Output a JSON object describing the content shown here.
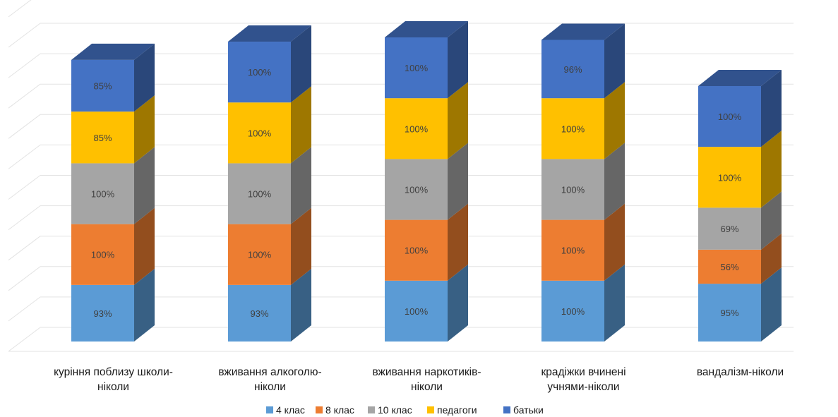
{
  "chart_data": {
    "type": "bar",
    "stacked": true,
    "three_d": true,
    "categories": [
      [
        "куріння поблизу школи-",
        "ніколи"
      ],
      [
        "вживання алкоголю-",
        "ніколи"
      ],
      [
        "вживання наркотиків-",
        "ніколи"
      ],
      [
        "крадіжки вчинені",
        "учнями-ніколи"
      ],
      [
        "вандалізм-ніколи"
      ]
    ],
    "series": [
      {
        "name": "4 клас",
        "color": "#5B9BD5",
        "values": [
          93,
          93,
          100,
          100,
          95
        ]
      },
      {
        "name": "8 клас",
        "color": "#ED7D31",
        "values": [
          100,
          100,
          100,
          100,
          56
        ]
      },
      {
        "name": "10 клас",
        "color": "#A5A5A5",
        "values": [
          100,
          100,
          100,
          100,
          69
        ]
      },
      {
        "name": "педагоги",
        "color": "#FFC000",
        "values": [
          85,
          100,
          100,
          100,
          100
        ]
      },
      {
        "name": "батьки",
        "color": "#4472C4",
        "values": [
          85,
          100,
          100,
          96,
          100
        ]
      }
    ],
    "value_format": "percent",
    "ylim": [
      0,
      550
    ],
    "grid": true,
    "legend_position": "bottom"
  }
}
